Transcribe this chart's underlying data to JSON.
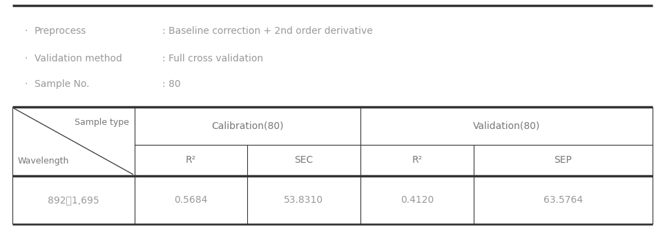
{
  "background_color": "#ffffff",
  "text_color": "#999999",
  "header_text_color": "#777777",
  "bullet_items": [
    {
      "label": "Preprocess",
      "value": ": Baseline correction + 2nd order derivative"
    },
    {
      "label": "Validation method",
      "value": ": Full cross validation"
    },
    {
      "label": "Sample No.",
      "value": ": 80"
    }
  ],
  "bullet_char": "·",
  "col_label_top": "Sample type",
  "col_label_bottom": "Wavelength",
  "calib_header": "Calibration(80)",
  "valid_header": "Validation(80)",
  "sub_headers": [
    "R²",
    "SEC",
    "R²",
    "SEP"
  ],
  "table_data": [
    "892～1,695",
    "0.5684",
    "53.8310",
    "0.4120",
    "63.5764"
  ],
  "fontsize_bullet": 10,
  "fontsize_table": 10,
  "fontsize_diag": 9
}
